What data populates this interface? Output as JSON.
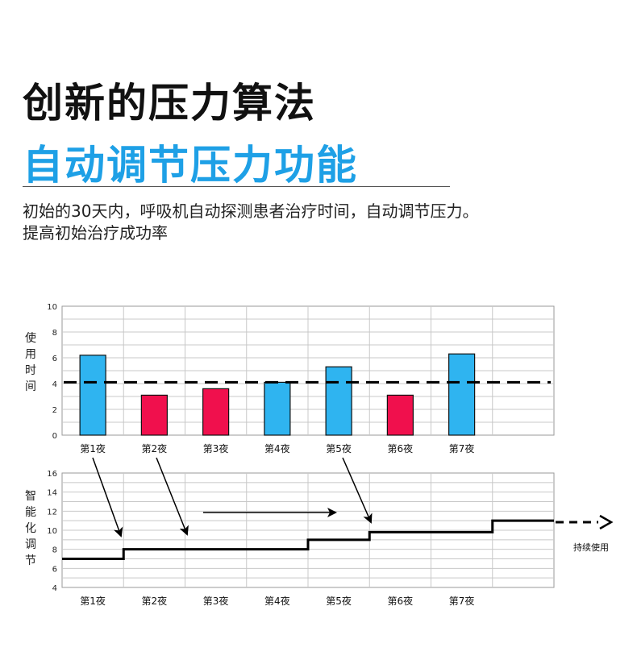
{
  "header": {
    "title": "创新的压力算法",
    "subtitle": "自动调节压力功能",
    "description_line1": "初始的30天内，呼吸机自动探测患者治疗时间，自动调节压力。",
    "description_line2": "提高初始治疗成功率"
  },
  "colors": {
    "blue_bar": "#2fb4f0",
    "red_bar": "#f0104d",
    "title_blue": "#1ea0e6"
  },
  "chart_data": [
    {
      "type": "bar",
      "ylabel": "使用时间",
      "ylim": [
        0,
        10
      ],
      "yticks": [
        0,
        2,
        4,
        6,
        8,
        10
      ],
      "categories": [
        "第1夜",
        "第2夜",
        "第3夜",
        "第4夜",
        "第5夜",
        "第6夜",
        "第7夜"
      ],
      "values": [
        6.2,
        3.1,
        3.6,
        4.1,
        5.3,
        3.1,
        6.3
      ],
      "bar_colors": [
        "blue",
        "red",
        "red",
        "blue",
        "blue",
        "red",
        "blue"
      ],
      "threshold": 4.1,
      "grid": true
    },
    {
      "type": "line",
      "style": "step",
      "ylabel": "智能化调节",
      "ylim": [
        4,
        16
      ],
      "yticks": [
        4,
        6,
        8,
        10,
        12,
        14,
        16
      ],
      "categories": [
        "第1夜",
        "第2夜",
        "第3夜",
        "第4夜",
        "第5夜",
        "第6夜",
        "第7夜"
      ],
      "steps": [
        {
          "x_start": 0,
          "x_end": 1,
          "y": 7
        },
        {
          "x_start": 1,
          "x_end": 4,
          "y": 8
        },
        {
          "x_start": 4,
          "x_end": 5,
          "y": 9
        },
        {
          "x_start": 5,
          "x_end": 7,
          "y": 9.8
        },
        {
          "x_start": 7,
          "x_end": 8,
          "y": 11
        }
      ],
      "continuation_label": "持续使用",
      "grid": true
    }
  ]
}
